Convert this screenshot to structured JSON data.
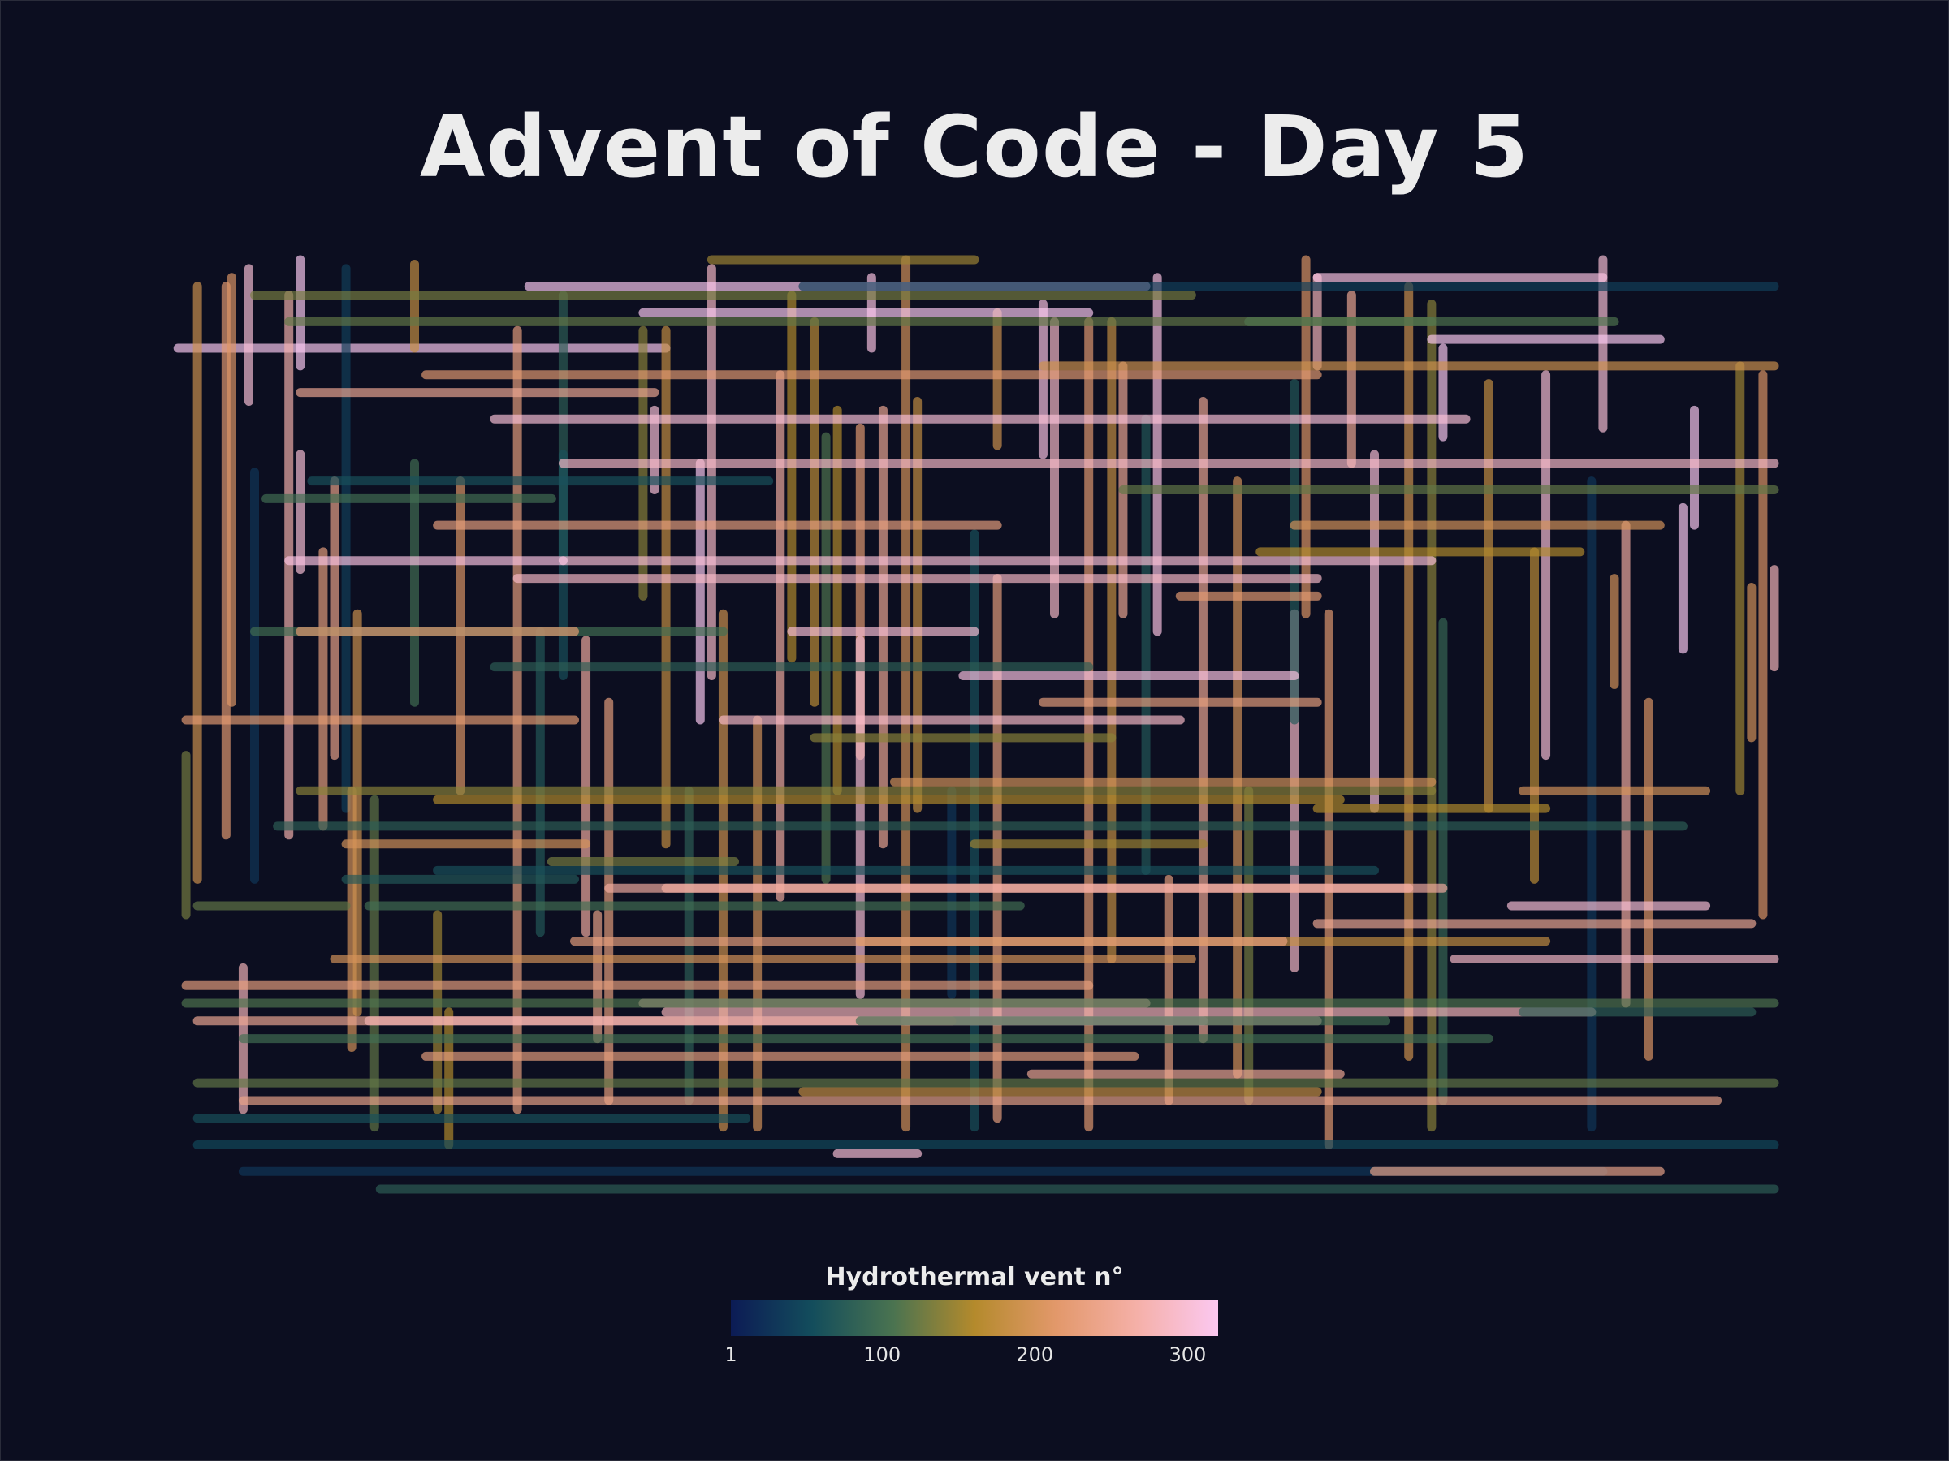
{
  "title": "Advent of Code - Day 5",
  "colors": {
    "background": "#0c0e20",
    "colormap": [
      "#0c1b55",
      "#134d5c",
      "#4a7350",
      "#b48a2c",
      "#e2986a",
      "#f5b0a8",
      "#fbc8f0"
    ]
  },
  "chart_data": {
    "type": "line",
    "description_kind": "line segments (horizontal and vertical vents) colored by vent index",
    "grid": false,
    "legend": {
      "title": "Hydrothermal vent n°",
      "position": "bottom-center",
      "range": [
        1,
        320
      ],
      "ticks": [
        {
          "value": 1,
          "label": "1"
        },
        {
          "value": 100,
          "label": "100"
        },
        {
          "value": 200,
          "label": "200"
        },
        {
          "value": 300,
          "label": "300"
        }
      ]
    },
    "xlim": [
      0,
      1000
    ],
    "ylim": [
      0,
      1000
    ],
    "segments": [
      [
        3,
        100,
        430,
        100,
        320
      ],
      [
        45,
        30,
        45,
        650,
        220
      ],
      [
        50,
        20,
        50,
        500,
        210
      ],
      [
        60,
        800,
        60,
        960,
        280
      ],
      [
        65,
        10,
        65,
        160,
        300
      ],
      [
        70,
        240,
        70,
        700,
        30
      ],
      [
        100,
        40,
        100,
        650,
        270
      ],
      [
        110,
        0,
        110,
        120,
        330
      ],
      [
        110,
        220,
        110,
        350,
        300
      ],
      [
        140,
        250,
        140,
        560,
        240
      ],
      [
        150,
        10,
        150,
        620,
        40
      ],
      [
        155,
        600,
        155,
        890,
        200
      ],
      [
        175,
        610,
        175,
        980,
        120
      ],
      [
        210,
        5,
        210,
        100,
        180
      ],
      [
        230,
        740,
        230,
        960,
        150
      ],
      [
        250,
        250,
        250,
        600,
        210
      ],
      [
        300,
        80,
        300,
        960,
        230
      ],
      [
        320,
        420,
        320,
        760,
        70
      ],
      [
        340,
        40,
        340,
        340,
        80
      ],
      [
        360,
        430,
        360,
        760,
        260
      ],
      [
        380,
        500,
        380,
        950,
        230
      ],
      [
        410,
        80,
        410,
        380,
        140
      ],
      [
        420,
        170,
        420,
        260,
        300
      ],
      [
        430,
        80,
        430,
        660,
        180
      ],
      [
        460,
        230,
        460,
        520,
        320
      ],
      [
        470,
        10,
        470,
        470,
        290
      ],
      [
        480,
        400,
        480,
        980,
        190
      ],
      [
        510,
        520,
        510,
        980,
        200
      ],
      [
        530,
        130,
        530,
        720,
        260
      ],
      [
        560,
        70,
        560,
        500,
        170
      ],
      [
        580,
        170,
        580,
        600,
        160
      ],
      [
        600,
        190,
        600,
        560,
        220
      ],
      [
        610,
        20,
        610,
        100,
        310
      ],
      [
        620,
        170,
        620,
        660,
        250
      ],
      [
        640,
        0,
        640,
        980,
        200
      ],
      [
        650,
        160,
        650,
        620,
        180
      ],
      [
        700,
        310,
        700,
        980,
        60
      ],
      [
        720,
        360,
        720,
        970,
        230
      ],
      [
        760,
        50,
        760,
        220,
        310
      ],
      [
        770,
        70,
        770,
        400,
        290
      ],
      [
        800,
        70,
        800,
        980,
        220
      ],
      [
        820,
        70,
        820,
        790,
        180
      ],
      [
        830,
        120,
        830,
        400,
        250
      ],
      [
        850,
        180,
        850,
        690,
        70
      ],
      [
        860,
        20,
        860,
        420,
        310
      ],
      [
        900,
        160,
        900,
        880,
        250
      ],
      [
        930,
        250,
        930,
        920,
        200
      ],
      [
        980,
        400,
        980,
        800,
        290
      ],
      [
        990,
        0,
        990,
        400,
        210
      ],
      [
        1000,
        20,
        1000,
        120,
        280
      ],
      [
        1030,
        40,
        1030,
        230,
        250
      ],
      [
        1050,
        220,
        1050,
        620,
        300
      ],
      [
        1080,
        30,
        1080,
        900,
        190
      ],
      [
        1100,
        50,
        1100,
        980,
        140
      ],
      [
        1110,
        410,
        1110,
        950,
        90
      ],
      [
        1150,
        140,
        1150,
        620,
        180
      ],
      [
        1200,
        130,
        1200,
        560,
        300
      ],
      [
        1240,
        250,
        1240,
        980,
        30
      ],
      [
        1250,
        0,
        1250,
        190,
        300
      ],
      [
        1270,
        300,
        1270,
        840,
        260
      ],
      [
        1320,
        280,
        1320,
        440,
        320
      ],
      [
        1370,
        120,
        1370,
        600,
        150
      ],
      [
        1380,
        370,
        1380,
        540,
        200
      ],
      [
        1390,
        130,
        1390,
        740,
        210
      ],
      [
        1400,
        350,
        1400,
        460,
        280
      ],
      [
        1330,
        170,
        1330,
        300,
        320
      ],
      [
        1110,
        100,
        1110,
        200,
        320
      ],
      [
        600,
        430,
        600,
        830,
        300
      ],
      [
        340,
        220,
        340,
        470,
        60
      ],
      [
        240,
        850,
        240,
        1000,
        160
      ],
      [
        10,
        560,
        10,
        740,
        130
      ],
      [
        20,
        30,
        20,
        700,
        190
      ],
      [
        130,
        330,
        130,
        640,
        230
      ],
      [
        370,
        740,
        370,
        880,
        240
      ],
      [
        1260,
        360,
        1260,
        480,
        200
      ],
      [
        1290,
        500,
        1290,
        900,
        210
      ],
      [
        1190,
        330,
        1190,
        700,
        170
      ],
      [
        940,
        600,
        940,
        950,
        130
      ],
      [
        720,
        60,
        720,
        210,
        190
      ],
      [
        210,
        230,
        210,
        500,
        100
      ],
      [
        540,
        40,
        540,
        450,
        160
      ],
      [
        160,
        400,
        160,
        850,
        190
      ],
      [
        1010,
        400,
        1010,
        1000,
        220
      ],
      [
        870,
        700,
        870,
        950,
        230
      ],
      [
        980,
        140,
        980,
        520,
        70
      ],
      [
        450,
        600,
        450,
        950,
        80
      ],
      [
        570,
        200,
        570,
        700,
        110
      ],
      [
        680,
        600,
        680,
        830,
        30
      ],
      [
        470,
        0,
        700,
        0,
        150
      ],
      [
        70,
        40,
        890,
        40,
        130
      ],
      [
        310,
        30,
        850,
        30,
        320
      ],
      [
        1000,
        20,
        1250,
        20,
        310
      ],
      [
        100,
        70,
        1100,
        70,
        120
      ],
      [
        550,
        30,
        1400,
        30,
        40
      ],
      [
        410,
        60,
        800,
        60,
        320
      ],
      [
        940,
        70,
        1260,
        70,
        110
      ],
      [
        220,
        130,
        1000,
        130,
        220
      ],
      [
        1100,
        90,
        1300,
        90,
        320
      ],
      [
        120,
        250,
        520,
        250,
        60
      ],
      [
        340,
        230,
        1400,
        230,
        290
      ],
      [
        280,
        180,
        1130,
        180,
        300
      ],
      [
        830,
        260,
        1400,
        260,
        120
      ],
      [
        230,
        300,
        720,
        300,
        230
      ],
      [
        980,
        300,
        1300,
        300,
        200
      ],
      [
        340,
        340,
        1100,
        340,
        300
      ],
      [
        100,
        340,
        340,
        340,
        310
      ],
      [
        300,
        360,
        1000,
        360,
        290
      ],
      [
        880,
        380,
        1000,
        380,
        220
      ],
      [
        70,
        420,
        480,
        420,
        100
      ],
      [
        110,
        420,
        350,
        420,
        220
      ],
      [
        540,
        420,
        700,
        420,
        300
      ],
      [
        690,
        470,
        980,
        470,
        310
      ],
      [
        760,
        500,
        1000,
        500,
        230
      ],
      [
        480,
        520,
        880,
        520,
        290
      ],
      [
        10,
        520,
        350,
        520,
        220
      ],
      [
        630,
        590,
        1100,
        590,
        200
      ],
      [
        110,
        600,
        1100,
        600,
        140
      ],
      [
        1000,
        620,
        1200,
        620,
        160
      ],
      [
        230,
        690,
        1050,
        690,
        60
      ],
      [
        150,
        700,
        350,
        700,
        70
      ],
      [
        380,
        710,
        1080,
        710,
        260
      ],
      [
        430,
        710,
        1110,
        710,
        260
      ],
      [
        140,
        790,
        890,
        790,
        200
      ],
      [
        600,
        770,
        1200,
        770,
        180
      ],
      [
        350,
        770,
        970,
        770,
        230
      ],
      [
        1000,
        750,
        1380,
        750,
        250
      ],
      [
        1170,
        730,
        1340,
        730,
        300
      ],
      [
        1120,
        790,
        1400,
        790,
        290
      ],
      [
        410,
        840,
        850,
        840,
        270
      ],
      [
        430,
        850,
        1240,
        850,
        280
      ],
      [
        170,
        860,
        900,
        860,
        320
      ],
      [
        220,
        900,
        840,
        900,
        230
      ],
      [
        750,
        920,
        1020,
        920,
        250
      ],
      [
        20,
        930,
        1400,
        930,
        120
      ],
      [
        60,
        950,
        1350,
        950,
        240
      ],
      [
        20,
        1000,
        1400,
        1000,
        50
      ],
      [
        60,
        1030,
        1250,
        1030,
        30
      ],
      [
        180,
        1050,
        1400,
        1050,
        80
      ],
      [
        10,
        820,
        800,
        820,
        230
      ],
      [
        10,
        840,
        1400,
        840,
        110
      ],
      [
        20,
        860,
        680,
        860,
        250
      ],
      [
        60,
        880,
        1150,
        880,
        100
      ],
      [
        550,
        940,
        1000,
        940,
        180
      ],
      [
        170,
        730,
        740,
        730,
        100
      ],
      [
        90,
        640,
        1320,
        640,
        80
      ],
      [
        230,
        610,
        1020,
        610,
        160
      ],
      [
        20,
        730,
        150,
        730,
        120
      ],
      [
        20,
        970,
        500,
        970,
        60
      ],
      [
        1050,
        1030,
        1300,
        1030,
        240
      ],
      [
        640,
        860,
        1000,
        860,
        270
      ],
      [
        280,
        460,
        800,
        460,
        80
      ],
      [
        560,
        540,
        820,
        540,
        140
      ],
      [
        700,
        660,
        900,
        660,
        150
      ],
      [
        150,
        660,
        360,
        660,
        200
      ],
      [
        330,
        680,
        490,
        680,
        130
      ],
      [
        580,
        1010,
        650,
        1010,
        300
      ],
      [
        1180,
        600,
        1340,
        600,
        200
      ],
      [
        1180,
        850,
        1380,
        850,
        80
      ],
      [
        760,
        120,
        1400,
        120,
        190
      ],
      [
        110,
        150,
        420,
        150,
        250
      ],
      [
        600,
        860,
        1060,
        860,
        100
      ],
      [
        950,
        330,
        1230,
        330,
        160
      ],
      [
        80,
        270,
        330,
        270,
        100
      ]
    ]
  }
}
